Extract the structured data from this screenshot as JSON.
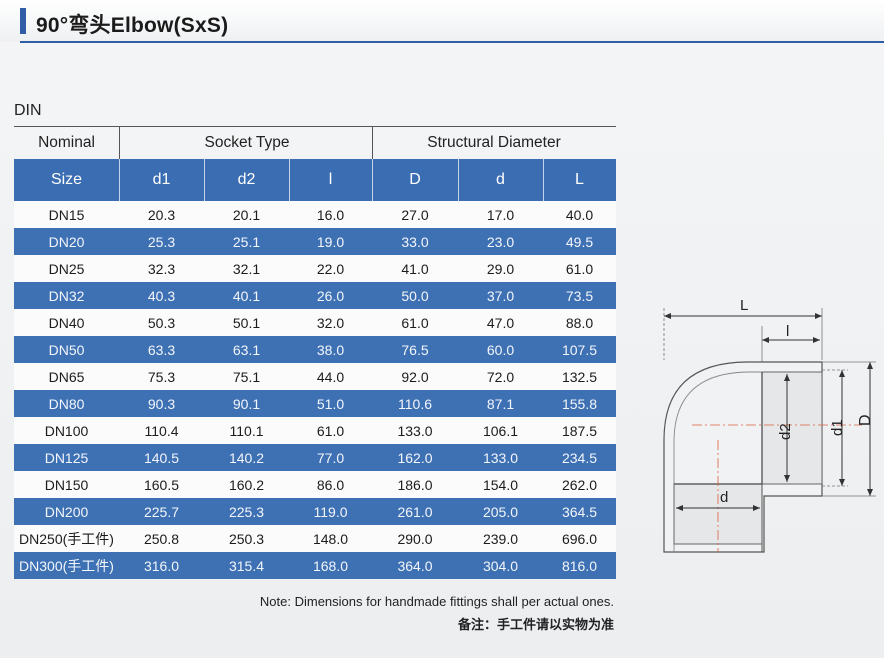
{
  "title": "90°弯头Elbow(SxS)",
  "section": "DIN",
  "table": {
    "group_headers": [
      "Nominal",
      "Socket Type",
      "Structural Diameter"
    ],
    "columns": [
      "Size",
      "d1",
      "d2",
      "l",
      "D",
      "d",
      "L"
    ],
    "rows": [
      [
        "DN15",
        "20.3",
        "20.1",
        "16.0",
        "27.0",
        "17.0",
        "40.0"
      ],
      [
        "DN20",
        "25.3",
        "25.1",
        "19.0",
        "33.0",
        "23.0",
        "49.5"
      ],
      [
        "DN25",
        "32.3",
        "32.1",
        "22.0",
        "41.0",
        "29.0",
        "61.0"
      ],
      [
        "DN32",
        "40.3",
        "40.1",
        "26.0",
        "50.0",
        "37.0",
        "73.5"
      ],
      [
        "DN40",
        "50.3",
        "50.1",
        "32.0",
        "61.0",
        "47.0",
        "88.0"
      ],
      [
        "DN50",
        "63.3",
        "63.1",
        "38.0",
        "76.5",
        "60.0",
        "107.5"
      ],
      [
        "DN65",
        "75.3",
        "75.1",
        "44.0",
        "92.0",
        "72.0",
        "132.5"
      ],
      [
        "DN80",
        "90.3",
        "90.1",
        "51.0",
        "110.6",
        "87.1",
        "155.8"
      ],
      [
        "DN100",
        "110.4",
        "110.1",
        "61.0",
        "133.0",
        "106.1",
        "187.5"
      ],
      [
        "DN125",
        "140.5",
        "140.2",
        "77.0",
        "162.0",
        "133.0",
        "234.5"
      ],
      [
        "DN150",
        "160.5",
        "160.2",
        "86.0",
        "186.0",
        "154.0",
        "262.0"
      ],
      [
        "DN200",
        "225.7",
        "225.3",
        "119.0",
        "261.0",
        "205.0",
        "364.5"
      ],
      [
        "DN250(手工件)",
        "250.8",
        "250.3",
        "148.0",
        "290.0",
        "239.0",
        "696.0"
      ],
      [
        "DN300(手工件)",
        "316.0",
        "315.4",
        "168.0",
        "364.0",
        "304.0",
        "816.0"
      ]
    ]
  },
  "note_en": "Note: Dimensions for handmade fittings shall per actual ones.",
  "note_cn": "备注：手工件请以实物为准",
  "drawing_labels": {
    "L": "L",
    "l": "l",
    "D": "D",
    "d1": "d1",
    "d2": "d2",
    "d": "d"
  },
  "colors": {
    "accent": "#2f5ea7",
    "row_blue": "#3e70b4"
  }
}
